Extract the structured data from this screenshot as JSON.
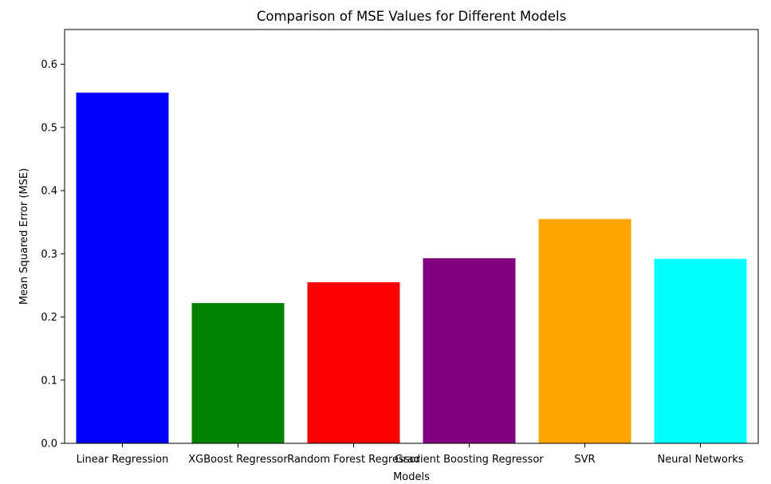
{
  "chart_data": {
    "type": "bar",
    "title": "Comparison of MSE Values for Different Models",
    "xlabel": "Models",
    "ylabel": "Mean Squared Error (MSE)",
    "categories": [
      "Linear Regression",
      "XGBoost Regressor",
      "Random Forest Regressor",
      "Gradient Boosting Regressor",
      "SVR",
      "Neural Networks"
    ],
    "values": [
      0.555,
      0.222,
      0.255,
      0.293,
      0.355,
      0.292
    ],
    "colors": [
      "#0000ff",
      "#008000",
      "#ff0000",
      "#800080",
      "#ffa500",
      "#00ffff"
    ],
    "ylim": [
      0,
      0.655
    ],
    "yticks": [
      0.0,
      0.1,
      0.2,
      0.3,
      0.4,
      0.5,
      0.6
    ],
    "ytick_labels": [
      "0.0",
      "0.1",
      "0.2",
      "0.3",
      "0.4",
      "0.5",
      "0.6"
    ],
    "grid": false,
    "legend": "none"
  }
}
